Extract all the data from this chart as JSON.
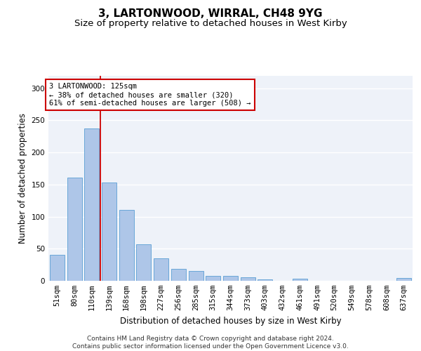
{
  "title_line1": "3, LARTONWOOD, WIRRAL, CH48 9YG",
  "title_line2": "Size of property relative to detached houses in West Kirby",
  "xlabel": "Distribution of detached houses by size in West Kirby",
  "ylabel": "Number of detached properties",
  "categories": [
    "51sqm",
    "80sqm",
    "110sqm",
    "139sqm",
    "168sqm",
    "198sqm",
    "227sqm",
    "256sqm",
    "285sqm",
    "315sqm",
    "344sqm",
    "373sqm",
    "403sqm",
    "432sqm",
    "461sqm",
    "491sqm",
    "520sqm",
    "549sqm",
    "578sqm",
    "608sqm",
    "637sqm"
  ],
  "values": [
    40,
    161,
    237,
    153,
    110,
    57,
    35,
    19,
    15,
    8,
    8,
    6,
    2,
    0,
    3,
    0,
    0,
    0,
    0,
    0,
    4
  ],
  "bar_color": "#aec6e8",
  "bar_edge_color": "#5a9fd4",
  "vline_x": 2.5,
  "vline_color": "#cc0000",
  "annotation_text": "3 LARTONWOOD: 125sqm\n← 38% of detached houses are smaller (320)\n61% of semi-detached houses are larger (508) →",
  "annotation_box_color": "#ffffff",
  "annotation_box_edge_color": "#cc0000",
  "ylim": [
    0,
    320
  ],
  "yticks": [
    0,
    50,
    100,
    150,
    200,
    250,
    300
  ],
  "footer_text": "Contains HM Land Registry data © Crown copyright and database right 2024.\nContains public sector information licensed under the Open Government Licence v3.0.",
  "background_color": "#eef2f9",
  "grid_color": "#ffffff",
  "title_fontsize": 11,
  "subtitle_fontsize": 9.5,
  "ylabel_fontsize": 8.5,
  "xlabel_fontsize": 8.5,
  "tick_fontsize": 7.5,
  "annotation_fontsize": 7.5,
  "footer_fontsize": 6.5
}
